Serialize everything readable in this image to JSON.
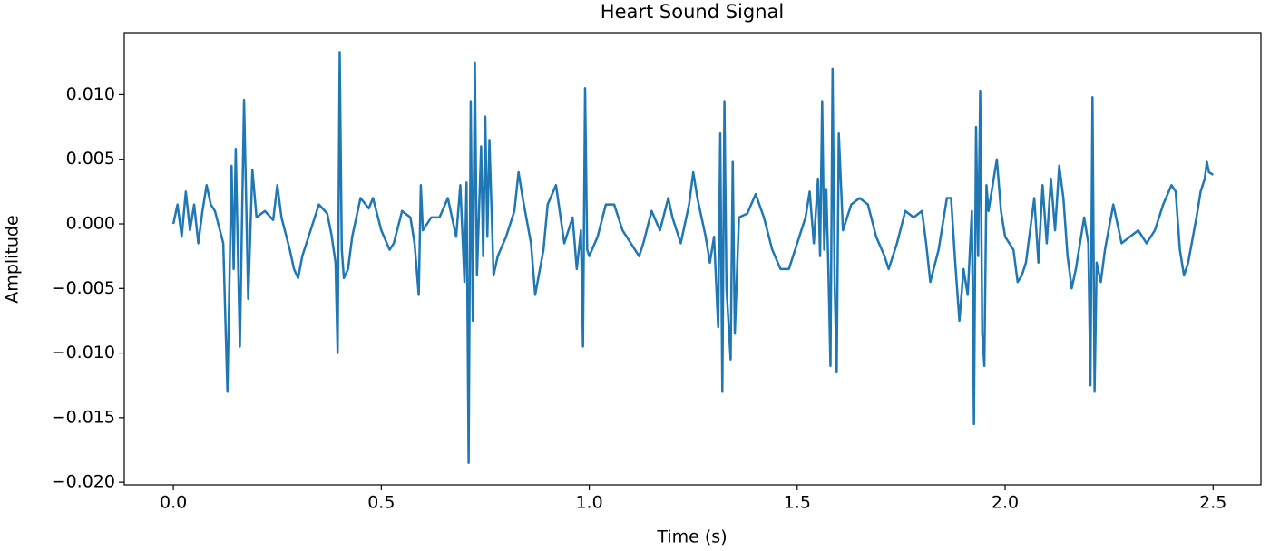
{
  "chart_data": {
    "type": "line",
    "title": "Heart Sound Signal",
    "x_label": "Time (s)",
    "y_label": "Amplitude",
    "color": "#1f77b4",
    "x": [
      0.0,
      0.01,
      0.02,
      0.03,
      0.04,
      0.05,
      0.06,
      0.07,
      0.08,
      0.09,
      0.1,
      0.12,
      0.13,
      0.14,
      0.145,
      0.15,
      0.16,
      0.17,
      0.18,
      0.19,
      0.2,
      0.22,
      0.24,
      0.25,
      0.26,
      0.28,
      0.29,
      0.3,
      0.31,
      0.33,
      0.35,
      0.37,
      0.38,
      0.39,
      0.395,
      0.4,
      0.405,
      0.41,
      0.42,
      0.43,
      0.45,
      0.47,
      0.48,
      0.5,
      0.52,
      0.53,
      0.55,
      0.57,
      0.58,
      0.59,
      0.595,
      0.6,
      0.62,
      0.64,
      0.66,
      0.68,
      0.69,
      0.7,
      0.705,
      0.71,
      0.715,
      0.72,
      0.725,
      0.73,
      0.74,
      0.745,
      0.75,
      0.755,
      0.76,
      0.77,
      0.78,
      0.8,
      0.82,
      0.83,
      0.84,
      0.86,
      0.87,
      0.89,
      0.9,
      0.92,
      0.94,
      0.96,
      0.97,
      0.98,
      0.985,
      0.99,
      0.995,
      1.0,
      1.02,
      1.04,
      1.06,
      1.08,
      1.1,
      1.12,
      1.13,
      1.15,
      1.17,
      1.19,
      1.2,
      1.22,
      1.24,
      1.25,
      1.26,
      1.28,
      1.29,
      1.3,
      1.31,
      1.315,
      1.32,
      1.325,
      1.33,
      1.34,
      1.345,
      1.35,
      1.36,
      1.38,
      1.4,
      1.42,
      1.44,
      1.46,
      1.48,
      1.5,
      1.52,
      1.53,
      1.54,
      1.55,
      1.555,
      1.56,
      1.565,
      1.57,
      1.575,
      1.58,
      1.585,
      1.59,
      1.595,
      1.6,
      1.61,
      1.63,
      1.65,
      1.67,
      1.69,
      1.71,
      1.72,
      1.74,
      1.76,
      1.78,
      1.8,
      1.81,
      1.82,
      1.84,
      1.86,
      1.87,
      1.88,
      1.89,
      1.9,
      1.91,
      1.92,
      1.925,
      1.93,
      1.935,
      1.94,
      1.945,
      1.95,
      1.955,
      1.96,
      1.98,
      1.99,
      2.0,
      2.02,
      2.03,
      2.04,
      2.05,
      2.06,
      2.07,
      2.08,
      2.09,
      2.1,
      2.11,
      2.12,
      2.13,
      2.14,
      2.15,
      2.16,
      2.17,
      2.19,
      2.2,
      2.205,
      2.21,
      2.215,
      2.22,
      2.23,
      2.24,
      2.26,
      2.28,
      2.3,
      2.32,
      2.34,
      2.36,
      2.38,
      2.4,
      2.41,
      2.42,
      2.43,
      2.44,
      2.46,
      2.47,
      2.48,
      2.485,
      2.49,
      2.5
    ],
    "values": [
      0.0,
      0.0015,
      -0.001,
      0.0025,
      -0.0005,
      0.0015,
      -0.0015,
      0.001,
      0.003,
      0.0015,
      0.001,
      -0.0015,
      -0.013,
      0.0045,
      -0.0035,
      0.0058,
      -0.0095,
      0.0096,
      -0.0058,
      0.0042,
      0.0005,
      0.001,
      0.0003,
      0.003,
      0.0005,
      -0.002,
      -0.0035,
      -0.0042,
      -0.0025,
      -0.0005,
      0.0015,
      0.0008,
      -0.0008,
      -0.003,
      -0.01,
      0.0133,
      -0.002,
      -0.0042,
      -0.0035,
      -0.001,
      0.002,
      0.0012,
      0.002,
      -0.0005,
      -0.002,
      -0.0015,
      0.001,
      0.0005,
      -0.0015,
      -0.0055,
      0.003,
      -0.0005,
      0.0005,
      0.0005,
      0.002,
      -0.001,
      0.003,
      -0.0045,
      0.0032,
      -0.0185,
      0.0095,
      -0.0075,
      0.0125,
      -0.004,
      0.006,
      -0.0025,
      0.0083,
      -0.001,
      0.0065,
      -0.004,
      -0.0025,
      -0.001,
      0.001,
      0.004,
      0.002,
      -0.0015,
      -0.0055,
      -0.002,
      0.0015,
      0.003,
      -0.0015,
      0.0005,
      -0.0035,
      -0.0005,
      -0.0095,
      0.0105,
      -0.002,
      -0.0025,
      -0.001,
      0.0015,
      0.0015,
      -0.0005,
      -0.0015,
      -0.0025,
      -0.0015,
      0.001,
      -0.0005,
      0.002,
      0.0005,
      -0.0015,
      0.0015,
      0.004,
      0.002,
      -0.001,
      -0.003,
      -0.001,
      -0.008,
      0.007,
      -0.013,
      0.0095,
      -0.005,
      -0.0105,
      0.0048,
      -0.0085,
      0.0005,
      0.0008,
      0.0023,
      0.0005,
      -0.002,
      -0.0035,
      -0.0035,
      -0.0015,
      0.0005,
      0.0025,
      -0.0015,
      0.0035,
      -0.0025,
      0.0095,
      -0.002,
      0.0027,
      -0.0035,
      -0.011,
      0.012,
      -0.0045,
      -0.0115,
      0.007,
      -0.0005,
      0.0015,
      0.002,
      0.0015,
      -0.001,
      -0.0025,
      -0.0035,
      -0.0015,
      0.001,
      0.0005,
      0.001,
      -0.0015,
      -0.0045,
      -0.002,
      0.002,
      0.002,
      -0.003,
      -0.0075,
      -0.0035,
      -0.0055,
      0.001,
      -0.0155,
      0.0075,
      -0.0025,
      0.0103,
      -0.0085,
      -0.011,
      0.003,
      0.001,
      0.005,
      0.001,
      -0.001,
      -0.002,
      -0.0045,
      -0.004,
      -0.003,
      -0.0005,
      0.002,
      -0.003,
      0.003,
      -0.0015,
      0.0035,
      -0.0005,
      0.0045,
      0.002,
      -0.0025,
      -0.005,
      -0.0035,
      0.0005,
      -0.0015,
      -0.0125,
      0.0098,
      -0.013,
      -0.003,
      -0.0045,
      -0.002,
      0.0015,
      -0.0015,
      -0.001,
      -0.0005,
      -0.0015,
      -0.0005,
      0.0015,
      0.003,
      0.0025,
      -0.002,
      -0.004,
      -0.003,
      0.0005,
      0.0025,
      0.0035,
      0.0048,
      0.004,
      0.0038
    ],
    "xlim": [
      -0.118,
      2.615
    ],
    "ylim": [
      -0.0202,
      0.0148
    ],
    "xticks": [
      {
        "value": 0,
        "label": "0.0"
      },
      0.5,
      {
        "value": 1,
        "label": "1.0"
      },
      1.5,
      {
        "value": 2,
        "label": "2.0"
      },
      2.5
    ],
    "yticks": [
      {
        "value": -0.02,
        "label": "−0.020"
      },
      {
        "value": -0.015,
        "label": "−0.015"
      },
      {
        "value": -0.01,
        "label": "−0.010"
      },
      {
        "value": -0.005,
        "label": "−0.005"
      },
      {
        "value": 0,
        "label": "0.000"
      },
      {
        "value": 0.005,
        "label": "0.005"
      },
      {
        "value": 0.01,
        "label": "0.010"
      }
    ],
    "grid": false
  }
}
